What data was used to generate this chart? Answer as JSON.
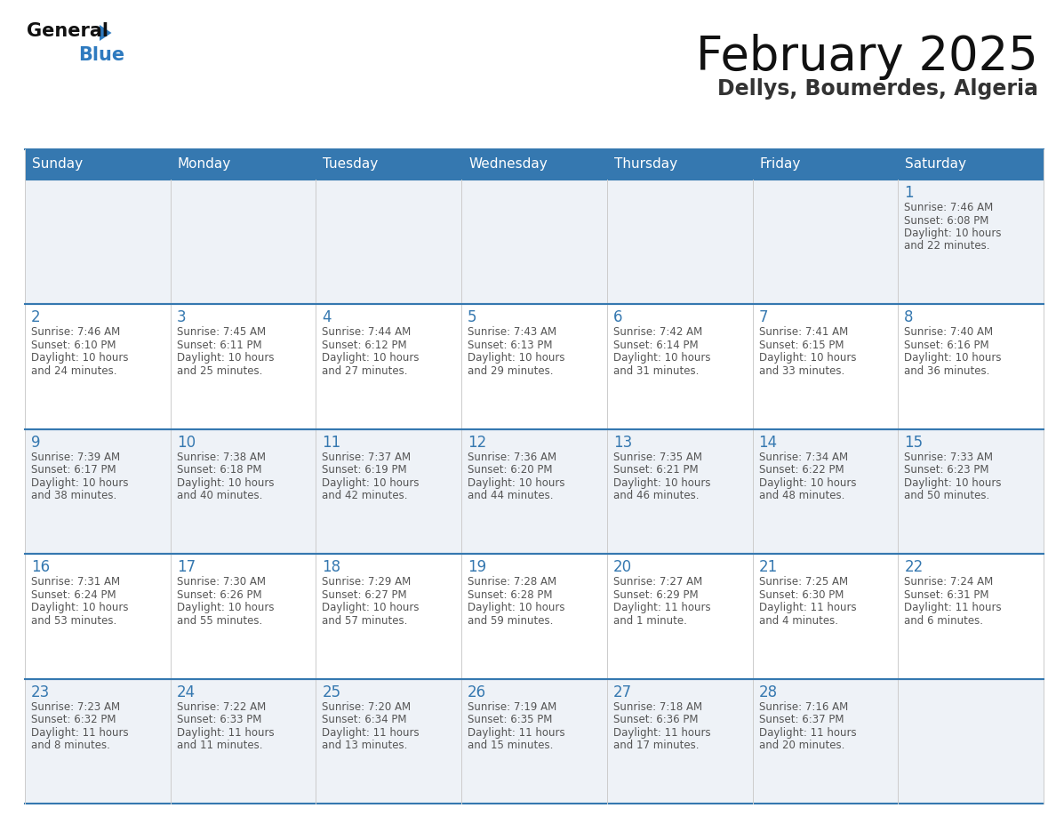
{
  "title": "February 2025",
  "subtitle": "Dellys, Boumerdes, Algeria",
  "days_of_week": [
    "Sunday",
    "Monday",
    "Tuesday",
    "Wednesday",
    "Thursday",
    "Friday",
    "Saturday"
  ],
  "header_bg_color": "#3578b0",
  "header_text_color": "#ffffff",
  "row_bg_odd": "#eef2f7",
  "row_bg_even": "#ffffff",
  "border_color": "#3578b0",
  "day_number_color": "#3578b0",
  "text_color": "#555555",
  "title_color": "#111111",
  "subtitle_color": "#333333",
  "logo_general_color": "#111111",
  "logo_blue_color": "#2e7abf",
  "logo_triangle_color": "#2e7abf",
  "calendar_data": [
    [
      null,
      null,
      null,
      null,
      null,
      null,
      {
        "day": 1,
        "sunrise": "7:46 AM",
        "sunset": "6:08 PM",
        "daylight_line1": "Daylight: 10 hours",
        "daylight_line2": "and 22 minutes."
      }
    ],
    [
      {
        "day": 2,
        "sunrise": "7:46 AM",
        "sunset": "6:10 PM",
        "daylight_line1": "Daylight: 10 hours",
        "daylight_line2": "and 24 minutes."
      },
      {
        "day": 3,
        "sunrise": "7:45 AM",
        "sunset": "6:11 PM",
        "daylight_line1": "Daylight: 10 hours",
        "daylight_line2": "and 25 minutes."
      },
      {
        "day": 4,
        "sunrise": "7:44 AM",
        "sunset": "6:12 PM",
        "daylight_line1": "Daylight: 10 hours",
        "daylight_line2": "and 27 minutes."
      },
      {
        "day": 5,
        "sunrise": "7:43 AM",
        "sunset": "6:13 PM",
        "daylight_line1": "Daylight: 10 hours",
        "daylight_line2": "and 29 minutes."
      },
      {
        "day": 6,
        "sunrise": "7:42 AM",
        "sunset": "6:14 PM",
        "daylight_line1": "Daylight: 10 hours",
        "daylight_line2": "and 31 minutes."
      },
      {
        "day": 7,
        "sunrise": "7:41 AM",
        "sunset": "6:15 PM",
        "daylight_line1": "Daylight: 10 hours",
        "daylight_line2": "and 33 minutes."
      },
      {
        "day": 8,
        "sunrise": "7:40 AM",
        "sunset": "6:16 PM",
        "daylight_line1": "Daylight: 10 hours",
        "daylight_line2": "and 36 minutes."
      }
    ],
    [
      {
        "day": 9,
        "sunrise": "7:39 AM",
        "sunset": "6:17 PM",
        "daylight_line1": "Daylight: 10 hours",
        "daylight_line2": "and 38 minutes."
      },
      {
        "day": 10,
        "sunrise": "7:38 AM",
        "sunset": "6:18 PM",
        "daylight_line1": "Daylight: 10 hours",
        "daylight_line2": "and 40 minutes."
      },
      {
        "day": 11,
        "sunrise": "7:37 AM",
        "sunset": "6:19 PM",
        "daylight_line1": "Daylight: 10 hours",
        "daylight_line2": "and 42 minutes."
      },
      {
        "day": 12,
        "sunrise": "7:36 AM",
        "sunset": "6:20 PM",
        "daylight_line1": "Daylight: 10 hours",
        "daylight_line2": "and 44 minutes."
      },
      {
        "day": 13,
        "sunrise": "7:35 AM",
        "sunset": "6:21 PM",
        "daylight_line1": "Daylight: 10 hours",
        "daylight_line2": "and 46 minutes."
      },
      {
        "day": 14,
        "sunrise": "7:34 AM",
        "sunset": "6:22 PM",
        "daylight_line1": "Daylight: 10 hours",
        "daylight_line2": "and 48 minutes."
      },
      {
        "day": 15,
        "sunrise": "7:33 AM",
        "sunset": "6:23 PM",
        "daylight_line1": "Daylight: 10 hours",
        "daylight_line2": "and 50 minutes."
      }
    ],
    [
      {
        "day": 16,
        "sunrise": "7:31 AM",
        "sunset": "6:24 PM",
        "daylight_line1": "Daylight: 10 hours",
        "daylight_line2": "and 53 minutes."
      },
      {
        "day": 17,
        "sunrise": "7:30 AM",
        "sunset": "6:26 PM",
        "daylight_line1": "Daylight: 10 hours",
        "daylight_line2": "and 55 minutes."
      },
      {
        "day": 18,
        "sunrise": "7:29 AM",
        "sunset": "6:27 PM",
        "daylight_line1": "Daylight: 10 hours",
        "daylight_line2": "and 57 minutes."
      },
      {
        "day": 19,
        "sunrise": "7:28 AM",
        "sunset": "6:28 PM",
        "daylight_line1": "Daylight: 10 hours",
        "daylight_line2": "and 59 minutes."
      },
      {
        "day": 20,
        "sunrise": "7:27 AM",
        "sunset": "6:29 PM",
        "daylight_line1": "Daylight: 11 hours",
        "daylight_line2": "and 1 minute."
      },
      {
        "day": 21,
        "sunrise": "7:25 AM",
        "sunset": "6:30 PM",
        "daylight_line1": "Daylight: 11 hours",
        "daylight_line2": "and 4 minutes."
      },
      {
        "day": 22,
        "sunrise": "7:24 AM",
        "sunset": "6:31 PM",
        "daylight_line1": "Daylight: 11 hours",
        "daylight_line2": "and 6 minutes."
      }
    ],
    [
      {
        "day": 23,
        "sunrise": "7:23 AM",
        "sunset": "6:32 PM",
        "daylight_line1": "Daylight: 11 hours",
        "daylight_line2": "and 8 minutes."
      },
      {
        "day": 24,
        "sunrise": "7:22 AM",
        "sunset": "6:33 PM",
        "daylight_line1": "Daylight: 11 hours",
        "daylight_line2": "and 11 minutes."
      },
      {
        "day": 25,
        "sunrise": "7:20 AM",
        "sunset": "6:34 PM",
        "daylight_line1": "Daylight: 11 hours",
        "daylight_line2": "and 13 minutes."
      },
      {
        "day": 26,
        "sunrise": "7:19 AM",
        "sunset": "6:35 PM",
        "daylight_line1": "Daylight: 11 hours",
        "daylight_line2": "and 15 minutes."
      },
      {
        "day": 27,
        "sunrise": "7:18 AM",
        "sunset": "6:36 PM",
        "daylight_line1": "Daylight: 11 hours",
        "daylight_line2": "and 17 minutes."
      },
      {
        "day": 28,
        "sunrise": "7:16 AM",
        "sunset": "6:37 PM",
        "daylight_line1": "Daylight: 11 hours",
        "daylight_line2": "and 20 minutes."
      },
      null
    ]
  ]
}
